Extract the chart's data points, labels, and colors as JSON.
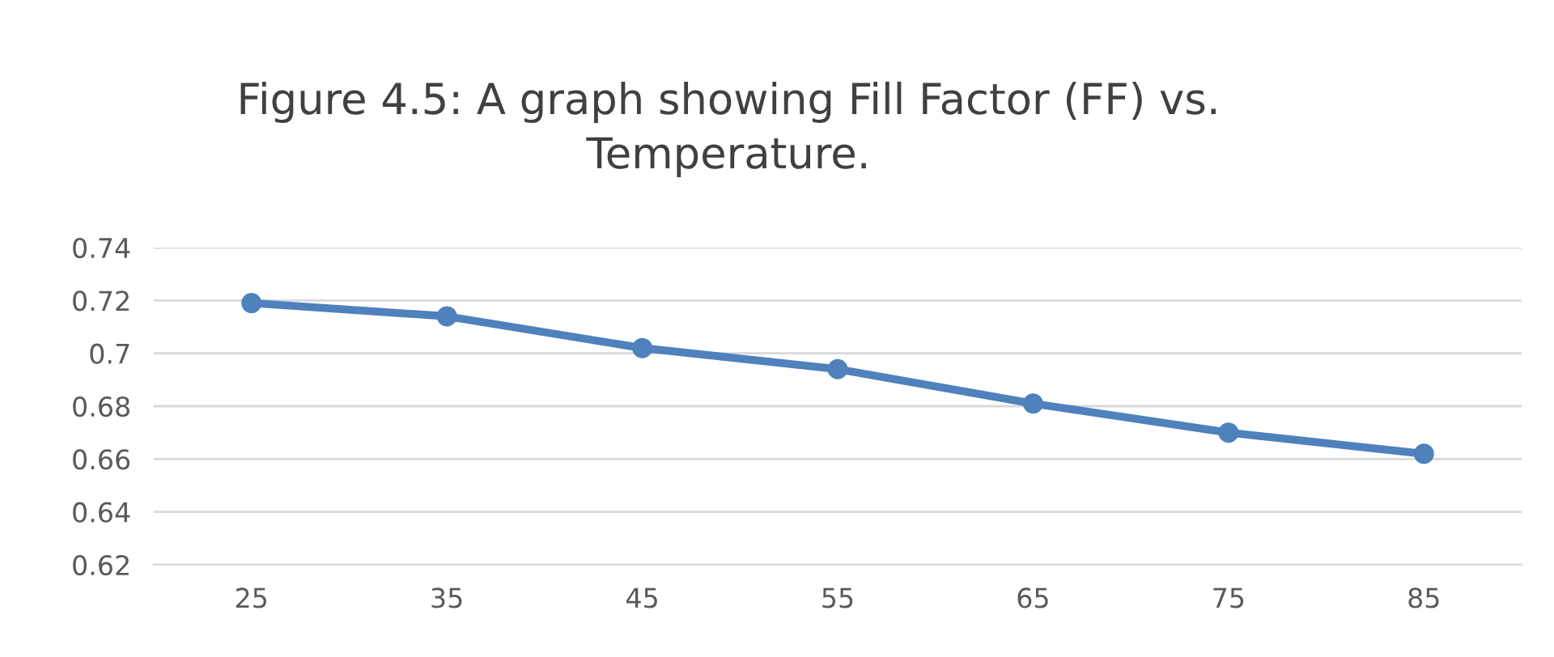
{
  "chart_data": {
    "type": "line",
    "title": "Figure 4.5: A graph showing Fill Factor (FF) vs.\nTemperature.",
    "categories": [
      "25",
      "35",
      "45",
      "55",
      "65",
      "75",
      "85"
    ],
    "series": [
      {
        "color": "#4f81bd",
        "values": [
          0.719,
          0.714,
          0.702,
          0.694,
          0.681,
          0.67,
          0.662
        ]
      }
    ],
    "ylim": [
      0.62,
      0.74
    ],
    "yticks": [
      0.62,
      0.64,
      0.66,
      0.68,
      0.7,
      0.72,
      0.74
    ],
    "grid": "y",
    "marker": "circle",
    "line_style": "solid"
  }
}
